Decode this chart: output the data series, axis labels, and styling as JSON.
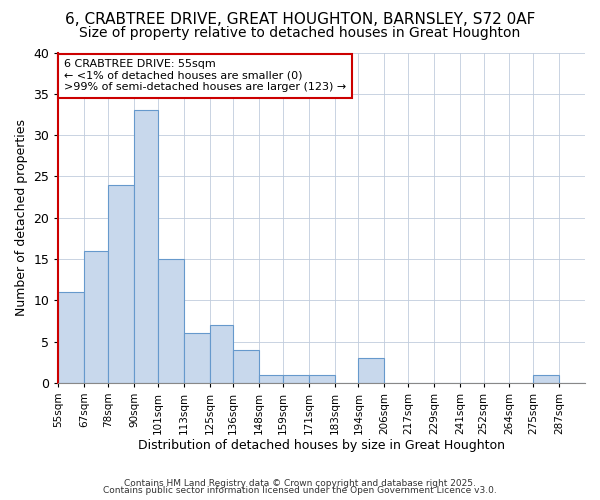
{
  "title_line1": "6, CRABTREE DRIVE, GREAT HOUGHTON, BARNSLEY, S72 0AF",
  "title_line2": "Size of property relative to detached houses in Great Houghton",
  "xlabel": "Distribution of detached houses by size in Great Houghton",
  "ylabel": "Number of detached properties",
  "bin_edges": [
    55,
    67,
    78,
    90,
    101,
    113,
    125,
    136,
    148,
    159,
    171,
    183,
    194,
    206,
    217,
    229,
    241,
    252,
    264,
    275,
    287,
    299
  ],
  "values": [
    11,
    16,
    24,
    33,
    15,
    6,
    7,
    4,
    1,
    1,
    1,
    0,
    3,
    0,
    0,
    0,
    0,
    0,
    0,
    1,
    0
  ],
  "bar_color": "#c8d8ec",
  "bar_edge_color": "#6699cc",
  "annotation_box_color": "#cc0000",
  "annotation_text_line1": "6 CRABTREE DRIVE: 55sqm",
  "annotation_text_line2": "← <1% of detached houses are smaller (0)",
  "annotation_text_line3": ">99% of semi-detached houses are larger (123) →",
  "ylim": [
    0,
    40
  ],
  "yticks": [
    0,
    5,
    10,
    15,
    20,
    25,
    30,
    35,
    40
  ],
  "tick_labels": [
    "55sqm",
    "67sqm",
    "78sqm",
    "90sqm",
    "101sqm",
    "113sqm",
    "125sqm",
    "136sqm",
    "148sqm",
    "159sqm",
    "171sqm",
    "183sqm",
    "194sqm",
    "206sqm",
    "217sqm",
    "229sqm",
    "241sqm",
    "252sqm",
    "264sqm",
    "275sqm",
    "287sqm"
  ],
  "footer_line1": "Contains HM Land Registry data © Crown copyright and database right 2025.",
  "footer_line2": "Contains public sector information licensed under the Open Government Licence v3.0.",
  "bg_color": "#ffffff",
  "plot_bg_color": "#ffffff",
  "grid_color": "#c0ccdd",
  "left_spine_color": "#cc0000",
  "title_fontsize": 11,
  "subtitle_fontsize": 10
}
